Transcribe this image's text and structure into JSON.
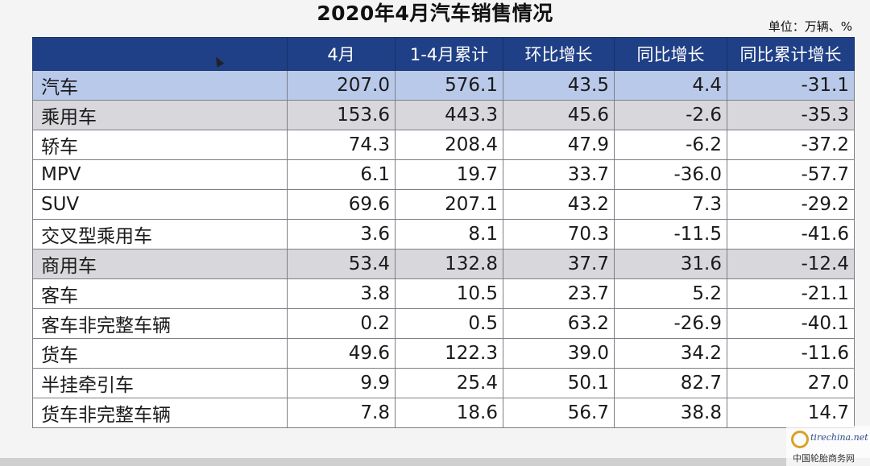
{
  "title": "2020年4月汽车销售情况",
  "unit": "单位：万辆、%",
  "table": {
    "headers": [
      "",
      "4月",
      "1-4月累计",
      "环比增长",
      "同比增长",
      "同比累计增长"
    ],
    "rows": [
      {
        "label": "汽车",
        "level": 0,
        "style": "total",
        "values": [
          "207.0",
          "576.1",
          "43.5",
          "4.4",
          "-31.1"
        ]
      },
      {
        "label": "乘用车",
        "level": 1,
        "style": "sub",
        "values": [
          "153.6",
          "443.3",
          "45.6",
          "-2.6",
          "-35.3"
        ]
      },
      {
        "label": "轿车",
        "level": 2,
        "style": "plain",
        "values": [
          "74.3",
          "208.4",
          "47.9",
          "-6.2",
          "-37.2"
        ]
      },
      {
        "label": "MPV",
        "level": 2,
        "style": "plain",
        "values": [
          "6.1",
          "19.7",
          "33.7",
          "-36.0",
          "-57.7"
        ]
      },
      {
        "label": "SUV",
        "level": 2,
        "style": "plain",
        "values": [
          "69.6",
          "207.1",
          "43.2",
          "7.3",
          "-29.2"
        ]
      },
      {
        "label": "交叉型乘用车",
        "level": 2,
        "style": "plain",
        "values": [
          "3.6",
          "8.1",
          "70.3",
          "-11.5",
          "-41.6"
        ]
      },
      {
        "label": "商用车",
        "level": 1,
        "style": "sub",
        "values": [
          "53.4",
          "132.8",
          "37.7",
          "31.6",
          "-12.4"
        ]
      },
      {
        "label": "客车",
        "level": 2,
        "style": "plain",
        "values": [
          "3.8",
          "10.5",
          "23.7",
          "5.2",
          "-21.1"
        ]
      },
      {
        "label": "客车非完整车辆",
        "level": 3,
        "style": "plain",
        "values": [
          "0.2",
          "0.5",
          "63.2",
          "-26.9",
          "-40.1"
        ]
      },
      {
        "label": "货车",
        "level": 2,
        "style": "plain",
        "values": [
          "49.6",
          "122.3",
          "39.0",
          "34.2",
          "-11.6"
        ]
      },
      {
        "label": "半挂牵引车",
        "level": 3,
        "style": "plain",
        "values": [
          "9.9",
          "25.4",
          "50.1",
          "82.7",
          "27.0"
        ]
      },
      {
        "label": "货车非完整车辆",
        "level": 3,
        "style": "plain",
        "values": [
          "7.8",
          "18.6",
          "56.7",
          "38.8",
          "14.7"
        ]
      }
    ]
  },
  "watermark": {
    "site": "tirechina.net",
    "text": "中国轮胎商务网"
  },
  "colors": {
    "header_bg": "#1f3f86",
    "total_row_bg": "#b9c9ea",
    "sub_row_bg": "#d8d8dc"
  }
}
